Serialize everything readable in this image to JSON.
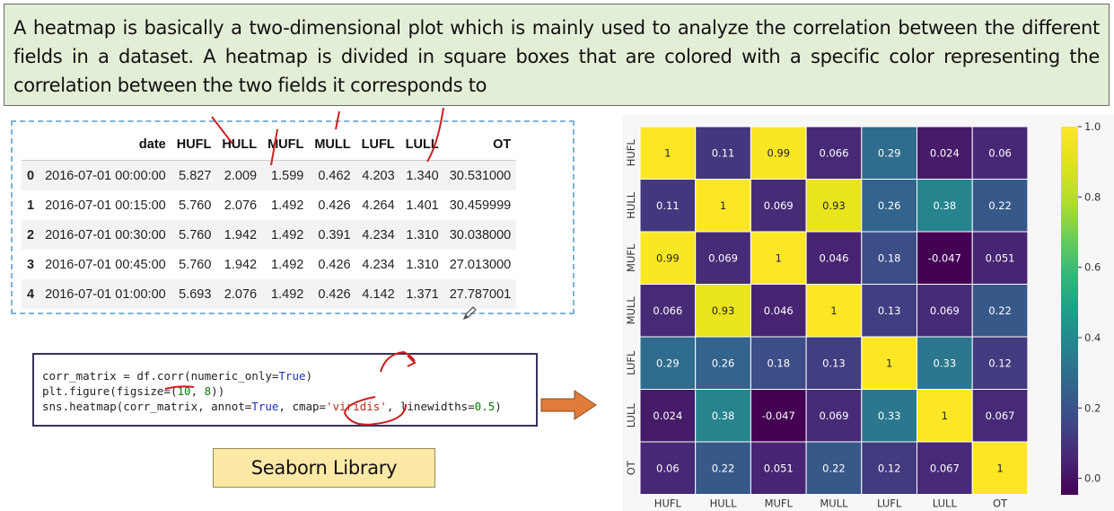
{
  "banner": {
    "text": "A heatmap is basically a two-dimensional plot which is mainly used to analyze the correlation between the different fields in a dataset. A heatmap is divided in square boxes that are colored with a specific color representing the correlation between the two fields it corresponds to"
  },
  "dataframe": {
    "columns": [
      "",
      "date",
      "HUFL",
      "HULL",
      "MUFL",
      "MULL",
      "LUFL",
      "LULL",
      "OT"
    ],
    "rows": [
      [
        "0",
        "2016-07-01 00:00:00",
        "5.827",
        "2.009",
        "1.599",
        "0.462",
        "4.203",
        "1.340",
        "30.531000"
      ],
      [
        "1",
        "2016-07-01 00:15:00",
        "5.760",
        "2.076",
        "1.492",
        "0.426",
        "4.264",
        "1.401",
        "30.459999"
      ],
      [
        "2",
        "2016-07-01 00:30:00",
        "5.760",
        "1.942",
        "1.492",
        "0.391",
        "4.234",
        "1.310",
        "30.038000"
      ],
      [
        "3",
        "2016-07-01 00:45:00",
        "5.760",
        "1.942",
        "1.492",
        "0.426",
        "4.234",
        "1.310",
        "27.013000"
      ],
      [
        "4",
        "2016-07-01 01:00:00",
        "5.693",
        "2.076",
        "1.492",
        "0.426",
        "4.142",
        "1.371",
        "27.787001"
      ]
    ]
  },
  "code": {
    "line1_a": "corr_matrix = df.corr(numeric_only=",
    "line1_kw": "True",
    "line1_b": ")",
    "line2_a": "plt.figure(figsize=(",
    "line2_n1": "10",
    "line2_b": ", ",
    "line2_n2": "8",
    "line2_c": "))",
    "line3_a": "sns.heatmap(corr_matrix, annot=",
    "line3_kw": "True",
    "line3_b": ", cmap=",
    "line3_str": "'viridis'",
    "line3_c": ", linewidths=",
    "line3_num": "0.5",
    "line3_d": ")"
  },
  "label": {
    "text": "Seaborn Library"
  },
  "colors": {
    "banner_bg": "#e3eed6",
    "label_bg": "#fde9a6",
    "arrow": "#e07b39",
    "ink": "#cc1f1f"
  },
  "chart_data": {
    "type": "heatmap",
    "x_labels": [
      "HUFL",
      "HULL",
      "MUFL",
      "MULL",
      "LUFL",
      "LULL",
      "OT"
    ],
    "y_labels": [
      "HUFL",
      "HULL",
      "MUFL",
      "MULL",
      "LUFL",
      "LULL",
      "OT"
    ],
    "values": [
      [
        1,
        0.11,
        0.99,
        0.066,
        0.29,
        0.024,
        0.06
      ],
      [
        0.11,
        1,
        0.069,
        0.93,
        0.26,
        0.38,
        0.22
      ],
      [
        0.99,
        0.069,
        1,
        0.046,
        0.18,
        -0.047,
        0.051
      ],
      [
        0.066,
        0.93,
        0.046,
        1,
        0.13,
        0.069,
        0.22
      ],
      [
        0.29,
        0.26,
        0.18,
        0.13,
        1,
        0.33,
        0.12
      ],
      [
        0.024,
        0.38,
        -0.047,
        0.069,
        0.33,
        1,
        0.067
      ],
      [
        0.06,
        0.22,
        0.051,
        0.22,
        0.12,
        0.067,
        1
      ]
    ],
    "annotations": [
      [
        "1",
        "0.11",
        "0.99",
        "0.066",
        "0.29",
        "0.024",
        "0.06"
      ],
      [
        "0.11",
        "1",
        "0.069",
        "0.93",
        "0.26",
        "0.38",
        "0.22"
      ],
      [
        "0.99",
        "0.069",
        "1",
        "0.046",
        "0.18",
        "-0.047",
        "0.051"
      ],
      [
        "0.066",
        "0.93",
        "0.046",
        "1",
        "0.13",
        "0.069",
        "0.22"
      ],
      [
        "0.29",
        "0.26",
        "0.18",
        "0.13",
        "1",
        "0.33",
        "0.12"
      ],
      [
        "0.024",
        "0.38",
        "-0.047",
        "0.069",
        "0.33",
        "1",
        "0.067"
      ],
      [
        "0.06",
        "0.22",
        "0.051",
        "0.22",
        "0.12",
        "0.067",
        "1"
      ]
    ],
    "colormap": "viridis",
    "vmin": -0.047,
    "vmax": 1.0,
    "colorbar_ticks": [
      0.0,
      0.2,
      0.4,
      0.6,
      0.8,
      1.0
    ],
    "colorbar_tick_labels": [
      "0.0",
      "0.2",
      "0.4",
      "0.6",
      "0.8",
      "1.0"
    ]
  }
}
